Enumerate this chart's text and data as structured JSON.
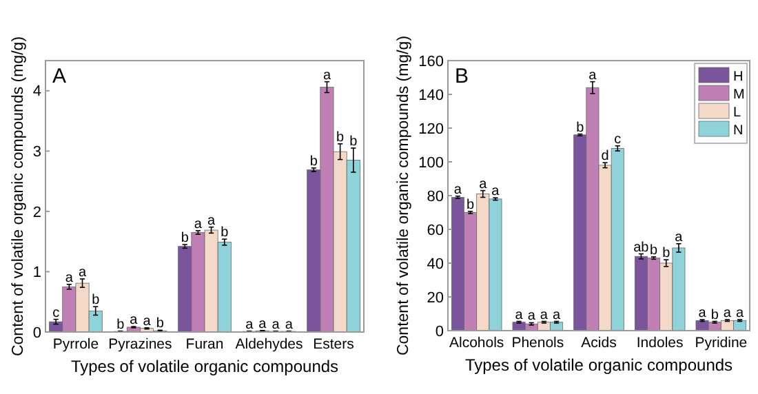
{
  "chart_data": [
    {
      "type": "bar",
      "title": "A",
      "xlabel": "Types of volatile organic compounds",
      "ylabel": "Content of volatile organic compounds (mg/g)",
      "categories": [
        "Pyrrole",
        "Pyrazines",
        "Furan",
        "Aldehydes",
        "Esters"
      ],
      "ylim": [
        0,
        4.5
      ],
      "yticks": [
        0,
        1,
        2,
        3,
        4
      ],
      "legend": false,
      "grid": false,
      "series": [
        {
          "color": "#7b559b",
          "values": [
            0.17,
            0.01,
            1.42,
            0.01,
            2.69
          ],
          "errors": [
            0.04,
            0.005,
            0.03,
            0.005,
            0.03
          ],
          "value_labels": [
            "c",
            "b",
            "b",
            "a",
            "b"
          ]
        },
        {
          "color": "#c07fb5",
          "values": [
            0.75,
            0.08,
            1.65,
            0.02,
            4.06
          ],
          "errors": [
            0.04,
            0.01,
            0.03,
            0.005,
            0.09
          ],
          "value_labels": [
            "a",
            "a",
            "a",
            "a",
            "a"
          ]
        },
        {
          "color": "#f5d9c8",
          "values": [
            0.81,
            0.06,
            1.69,
            0.01,
            2.99
          ],
          "errors": [
            0.07,
            0.01,
            0.05,
            0.005,
            0.13
          ],
          "value_labels": [
            "a",
            "a",
            "a",
            "a",
            "b"
          ]
        },
        {
          "color": "#8fd3da",
          "values": [
            0.35,
            0.02,
            1.49,
            0.01,
            2.85
          ],
          "errors": [
            0.07,
            0.01,
            0.05,
            0.005,
            0.2
          ],
          "value_labels": [
            "b",
            "b",
            "b",
            "a",
            "b"
          ]
        }
      ]
    },
    {
      "type": "bar",
      "title": "B",
      "xlabel": "Types of volatile organic compounds",
      "ylabel": "Content of volatile organic compounds (mg/g)",
      "categories": [
        "Alcohols",
        "Phenols",
        "Acids",
        "Indoles",
        "Pyridine"
      ],
      "ylim": [
        0,
        160
      ],
      "yticks": [
        0,
        20,
        40,
        60,
        80,
        100,
        120,
        140,
        160
      ],
      "legend": "top right",
      "grid": false,
      "series": [
        {
          "name": "H",
          "color": "#7b559b",
          "values": [
            79,
            5,
            116,
            44,
            6
          ],
          "errors": [
            0.7,
            0.5,
            0.5,
            1.5,
            0.5
          ],
          "value_labels": [
            "a",
            "a",
            "b",
            "ab",
            "a"
          ]
        },
        {
          "name": "M",
          "color": "#c07fb5",
          "values": [
            70,
            4,
            144,
            43,
            5
          ],
          "errors": [
            0.7,
            0.7,
            3.5,
            0.7,
            0.5
          ],
          "value_labels": [
            "b",
            "a",
            "a",
            "b",
            "b"
          ]
        },
        {
          "name": "L",
          "color": "#f5d9c8",
          "values": [
            81,
            5,
            98,
            40,
            6
          ],
          "errors": [
            2,
            0.5,
            1.5,
            2,
            0.5
          ],
          "value_labels": [
            "a",
            "a",
            "d",
            "b",
            "a"
          ]
        },
        {
          "name": "N",
          "color": "#8fd3da",
          "values": [
            78,
            5,
            108,
            49,
            6
          ],
          "errors": [
            0.7,
            0.5,
            1.5,
            2.5,
            0.5
          ],
          "value_labels": [
            "a",
            "a",
            "c",
            "a",
            "a"
          ]
        }
      ]
    }
  ]
}
